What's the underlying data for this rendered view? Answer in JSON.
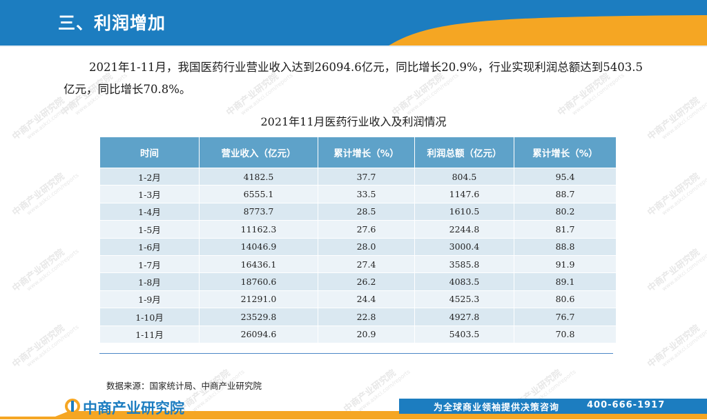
{
  "header": {
    "title": "三、利润增加"
  },
  "intro": "2021年1-11月，我国医药行业营业收入达到26094.6亿元，同比增长20.9%，行业实现利润总额达到5403.5亿元，同比增长70.8%。",
  "table": {
    "title": "2021年11月医药行业收入及利润情况",
    "headers": [
      "时间",
      "营业收入（亿元）",
      "累计增长（%）",
      "利润总额（亿元）",
      "累计增长（%）"
    ],
    "rows": [
      [
        "1-2月",
        "4182.5",
        "37.7",
        "804.5",
        "95.4"
      ],
      [
        "1-3月",
        "6555.1",
        "33.5",
        "1147.6",
        "88.7"
      ],
      [
        "1-4月",
        "8773.7",
        "28.5",
        "1610.5",
        "80.2"
      ],
      [
        "1-5月",
        "11162.3",
        "27.6",
        "2244.8",
        "81.7"
      ],
      [
        "1-6月",
        "14046.9",
        "28.0",
        "3000.4",
        "88.8"
      ],
      [
        "1-7月",
        "16436.1",
        "27.4",
        "3585.8",
        "91.9"
      ],
      [
        "1-8月",
        "18760.6",
        "26.2",
        "4083.5",
        "89.1"
      ],
      [
        "1-9月",
        "21291.0",
        "24.4",
        "4525.3",
        "80.6"
      ],
      [
        "1-10月",
        "23529.8",
        "22.8",
        "4927.8",
        "76.7"
      ],
      [
        "1-11月",
        "26094.6",
        "20.9",
        "5403.5",
        "70.8"
      ]
    ]
  },
  "source": "数据来源：国家统计局、中商产业研究院",
  "footer": {
    "logo_text": "中商产业研究院",
    "slogan": "为全球商业领袖提供决策咨询",
    "phone": "400-666-1917"
  },
  "watermark": {
    "name": "中商产业研究院",
    "url": "www.askci.com/reports"
  },
  "colors": {
    "header_blue": "#1c7dc0",
    "accent_orange": "#f5a623",
    "table_header": "#5ea2c9"
  }
}
